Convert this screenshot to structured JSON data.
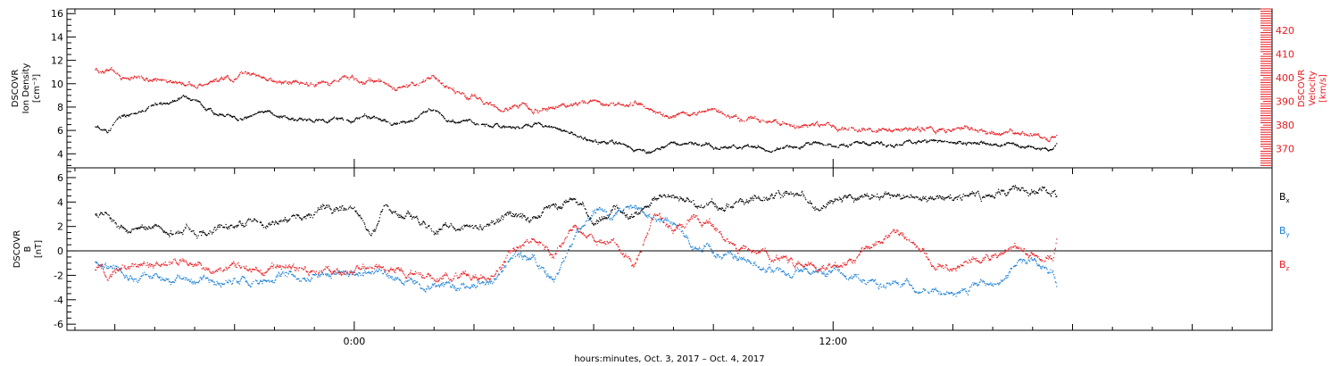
{
  "chart_data": [
    {
      "type": "scatter",
      "panel": "top",
      "ylabel_left": [
        "DSCOVR",
        "Ion Density",
        "[cm⁻³]"
      ],
      "ylabel_right": [
        "DSCOVR",
        "Velocity",
        "[km/s]"
      ],
      "ylim_left": [
        2.8,
        16.4
      ],
      "yticks_left": [
        "4",
        "6",
        "8",
        "10",
        "12",
        "14",
        "16"
      ],
      "ylim_right": [
        362,
        429
      ],
      "yticks_right": [
        "370",
        "380",
        "390",
        "400",
        "410",
        "420"
      ],
      "right_axis_color": "#e8191e",
      "series": [
        {
          "color": "#000000",
          "axis": "left",
          "x": [
            -6.5,
            -6.2,
            -5.9,
            -5.6,
            -5.2,
            -4.8,
            -4.3,
            -3.9,
            -3.5,
            -3.1,
            -2.6,
            -2.0,
            -1.5,
            -1.0,
            -0.5,
            0.0,
            0.5,
            1.0,
            1.5,
            2.0,
            2.5,
            3.0,
            3.5,
            4.0,
            4.5,
            5.0,
            5.5,
            6.0,
            6.5,
            7.0,
            7.5,
            8.0,
            8.5,
            9.0,
            9.5,
            10.0,
            10.5,
            11.0,
            11.5,
            12.0,
            12.5,
            13.0,
            13.5,
            14.0,
            14.5,
            15.0,
            15.5,
            16.0,
            16.5,
            17.0,
            17.5,
            17.6
          ],
          "y": [
            6.3,
            5.7,
            7.0,
            7.5,
            7.9,
            8.4,
            8.8,
            8.2,
            7.5,
            7.3,
            7.2,
            7.4,
            6.9,
            6.8,
            6.9,
            7.0,
            7.2,
            6.6,
            6.9,
            7.8,
            7.0,
            6.6,
            6.4,
            6.4,
            6.5,
            6.1,
            5.6,
            5.2,
            4.9,
            4.7,
            4.3,
            5.0,
            4.9,
            4.6,
            4.6,
            4.6,
            4.4,
            4.6,
            4.8,
            4.9,
            5.0,
            4.9,
            4.9,
            5.0,
            5.2,
            5.0,
            4.8,
            4.8,
            4.7,
            4.5,
            4.3,
            4.8
          ]
        },
        {
          "color": "#e8191e",
          "axis": "right",
          "x": [
            -6.5,
            -6.2,
            -5.9,
            -5.6,
            -5.2,
            -4.8,
            -4.3,
            -3.9,
            -3.5,
            -3.1,
            -2.6,
            -2.0,
            -1.5,
            -1.0,
            -0.5,
            0.0,
            0.5,
            1.0,
            1.5,
            2.0,
            2.5,
            3.0,
            3.5,
            4.0,
            4.5,
            5.0,
            5.5,
            6.0,
            6.5,
            7.0,
            7.5,
            8.0,
            8.5,
            9.0,
            9.5,
            10.0,
            10.5,
            11.0,
            11.5,
            12.0,
            12.5,
            13.0,
            13.5,
            14.0,
            14.5,
            15.0,
            15.5,
            16.0,
            16.5,
            17.0,
            17.5,
            17.6
          ],
          "y": [
            403,
            402,
            400,
            399,
            399,
            399,
            398,
            398,
            399,
            400,
            401,
            399,
            398,
            397,
            399,
            399,
            400,
            396,
            398,
            400,
            394,
            393,
            389,
            388,
            387,
            386,
            389,
            390,
            390,
            389,
            386,
            385,
            385,
            386,
            384,
            382,
            381,
            380,
            380,
            379,
            378,
            378,
            378,
            378,
            379,
            378,
            378,
            377,
            377,
            376,
            375,
            376
          ]
        }
      ]
    },
    {
      "type": "scatter",
      "panel": "bottom",
      "ylabel_left": [
        "DSCOVR",
        "B",
        "[nT]"
      ],
      "ylim": [
        -6.5,
        6.8
      ],
      "yticks": [
        "-6",
        "-4",
        "-2",
        "0",
        "2",
        "4",
        "6"
      ],
      "zero_line": true,
      "legend": [
        {
          "base": "B",
          "sub": "x",
          "color": "#000000"
        },
        {
          "base": "B",
          "sub": "y",
          "color": "#1a7fd4"
        },
        {
          "base": "B",
          "sub": "z",
          "color": "#e8191e"
        }
      ],
      "series": [
        {
          "color": "#000000",
          "x": [
            -6.5,
            -6.2,
            -5.9,
            -5.6,
            -5.2,
            -4.8,
            -4.3,
            -3.9,
            -3.5,
            -3.1,
            -2.6,
            -2.0,
            -1.5,
            -1.0,
            -0.5,
            0.0,
            0.4,
            0.8,
            1.2,
            1.6,
            2.0,
            2.5,
            3.0,
            3.5,
            4.0,
            4.5,
            5.0,
            5.5,
            6.0,
            6.5,
            7.0,
            7.5,
            8.0,
            8.5,
            9.0,
            9.5,
            10.0,
            10.5,
            11.0,
            11.5,
            12.0,
            12.5,
            13.0,
            13.5,
            14.0,
            14.5,
            15.0,
            15.5,
            16.0,
            16.5,
            17.0,
            17.5,
            17.6
          ],
          "y": [
            3.0,
            2.9,
            2.2,
            2.0,
            1.9,
            1.8,
            1.8,
            1.9,
            2.1,
            2.3,
            2.5,
            2.8,
            3.1,
            3.3,
            3.4,
            3.0,
            1.0,
            3.5,
            2.9,
            2.5,
            1.8,
            2.0,
            2.2,
            2.5,
            2.8,
            3.2,
            3.5,
            4.0,
            1.8,
            3.5,
            3.0,
            4.2,
            4.5,
            3.8,
            3.5,
            3.5,
            4.5,
            4.8,
            4.7,
            4.2,
            4.3,
            4.5,
            4.6,
            4.8,
            4.6,
            4.4,
            4.5,
            4.6,
            4.8,
            5.0,
            5.3,
            5.2,
            4.2
          ]
        },
        {
          "color": "#1a7fd4",
          "x": [
            -6.5,
            -6.2,
            -5.9,
            -5.6,
            -5.2,
            -4.8,
            -4.3,
            -3.9,
            -3.5,
            -3.1,
            -2.6,
            -2.0,
            -1.5,
            -1.0,
            -0.5,
            0.0,
            0.4,
            0.8,
            1.2,
            1.6,
            2.0,
            2.5,
            3.0,
            3.5,
            4.0,
            4.5,
            5.0,
            5.5,
            6.0,
            6.5,
            7.0,
            7.5,
            8.0,
            8.5,
            9.0,
            9.5,
            10.0,
            10.5,
            11.0,
            11.5,
            12.0,
            12.5,
            13.0,
            13.5,
            14.0,
            14.5,
            15.0,
            15.5,
            16.0,
            16.5,
            17.0,
            17.5,
            17.6
          ],
          "y": [
            -0.8,
            -1.5,
            -1.8,
            -2.0,
            -2.1,
            -2.3,
            -2.5,
            -2.6,
            -2.5,
            -2.4,
            -2.3,
            -2.2,
            -2.2,
            -2.0,
            -1.9,
            -2.0,
            -1.5,
            -2.2,
            -2.0,
            -2.8,
            -3.0,
            -2.9,
            -2.7,
            -2.5,
            0.0,
            -1.0,
            -2.5,
            1.0,
            3.5,
            3.0,
            3.8,
            2.5,
            2.0,
            0.5,
            0.2,
            -0.5,
            -1.0,
            -1.5,
            -2.0,
            -1.8,
            -1.5,
            -2.0,
            -2.5,
            -2.6,
            -2.8,
            -2.9,
            -3.0,
            -2.7,
            -2.5,
            -1.5,
            -1.0,
            -2.0,
            -3.5
          ]
        },
        {
          "color": "#e8191e",
          "x": [
            -6.5,
            -6.2,
            -5.9,
            -5.6,
            -5.2,
            -4.8,
            -4.3,
            -3.9,
            -3.5,
            -3.1,
            -2.6,
            -2.0,
            -1.5,
            -1.0,
            -0.5,
            0.0,
            0.4,
            0.8,
            1.2,
            1.6,
            2.0,
            2.5,
            3.0,
            3.5,
            4.0,
            4.5,
            5.0,
            5.5,
            6.0,
            6.5,
            7.0,
            7.5,
            8.0,
            8.5,
            9.0,
            9.5,
            10.0,
            10.5,
            11.0,
            11.5,
            12.0,
            12.5,
            13.0,
            13.5,
            14.0,
            14.5,
            15.0,
            15.5,
            16.0,
            16.5,
            17.0,
            17.5,
            17.6
          ],
          "y": [
            -1.5,
            -1.9,
            -1.2,
            -1.0,
            -1.0,
            -0.9,
            -0.6,
            -0.8,
            -1.1,
            -1.3,
            -1.5,
            -1.3,
            -1.5,
            -1.3,
            -1.4,
            -1.3,
            -1.0,
            -1.5,
            -1.8,
            -1.6,
            -1.8,
            -2.0,
            -2.0,
            -2.2,
            0.5,
            0.3,
            -0.5,
            2.0,
            1.5,
            1.0,
            -1.5,
            2.5,
            1.5,
            2.5,
            1.8,
            0.5,
            0.0,
            -0.5,
            -1.0,
            -0.8,
            -1.5,
            -0.5,
            0.5,
            1.2,
            0.5,
            -1.0,
            -1.5,
            -0.5,
            -1.0,
            0.0,
            -0.5,
            -0.5,
            1.0
          ]
        }
      ]
    }
  ],
  "xaxis": {
    "range": [
      -7.2,
      23.0
    ],
    "major_ticks": [
      0,
      12
    ],
    "tick_labels": [
      "0:00",
      "12:00"
    ],
    "xlabel": "hours:minutes, Oct.  3, 2017 – Oct.  4, 2017"
  }
}
